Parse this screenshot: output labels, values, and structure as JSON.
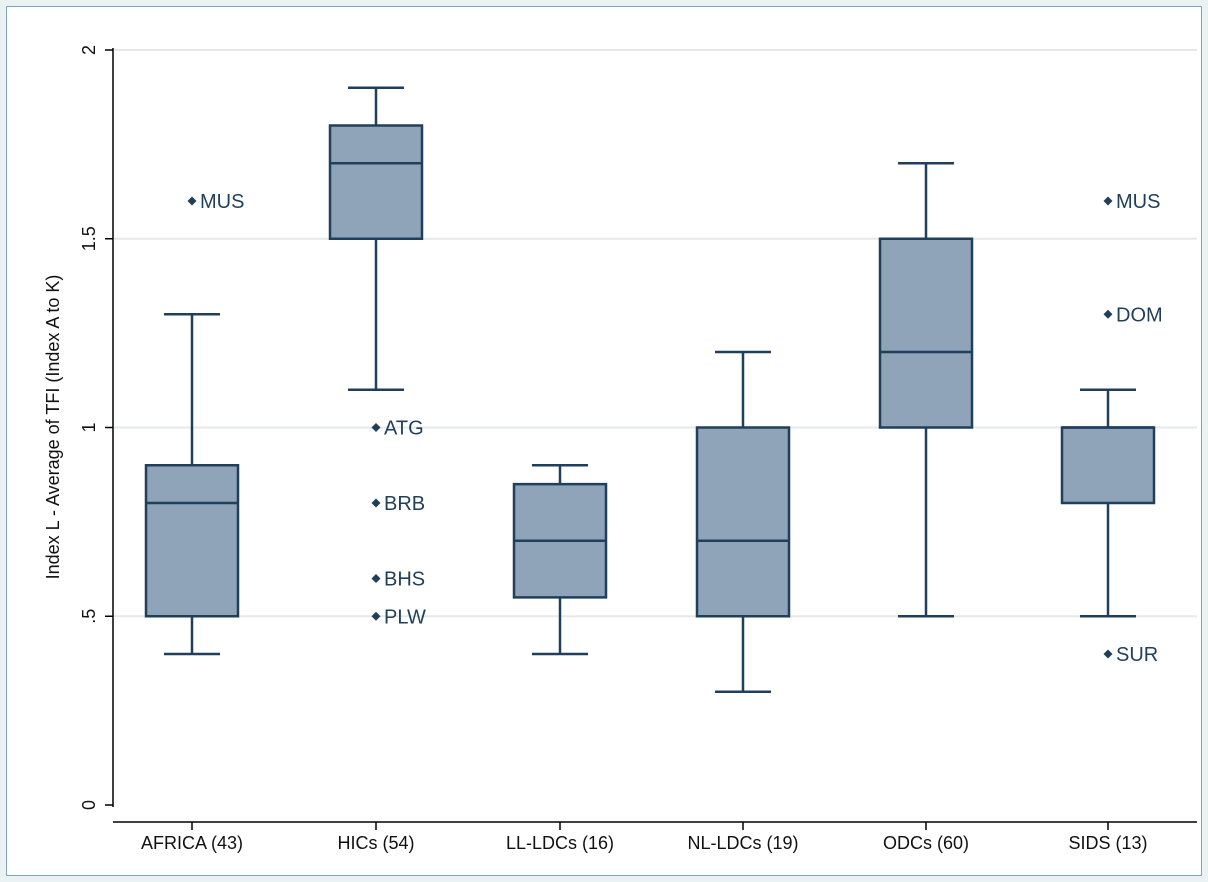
{
  "chart_data": {
    "type": "box",
    "ylabel": "Index L - Average of TFI (Index A to K)",
    "xlabel": "",
    "ylim": [
      0,
      2
    ],
    "yticks": [
      {
        "value": 0,
        "label": "0"
      },
      {
        "value": 0.5,
        "label": ".5"
      },
      {
        "value": 1,
        "label": "1"
      },
      {
        "value": 1.5,
        "label": "1.5"
      },
      {
        "value": 2,
        "label": "2"
      }
    ],
    "grid": true,
    "colors": {
      "box_fill": "#8fa4b8",
      "box_stroke": "#1f3f5b",
      "outlier": "#1f3f5b",
      "grid": "#e6e8ea",
      "axis": "#000000"
    },
    "categories": [
      "AFRICA (43)",
      "HICs (54)",
      "LL-LDCs (16)",
      "NL-LDCs (19)",
      "ODCs (60)",
      "SIDS (13)"
    ],
    "boxes": [
      {
        "category": "AFRICA (43)",
        "whisker_low": 0.4,
        "q1": 0.5,
        "median": 0.8,
        "q3": 0.9,
        "whisker_high": 1.3,
        "outliers": [
          {
            "label": "MUS",
            "value": 1.6
          }
        ]
      },
      {
        "category": "HICs (54)",
        "whisker_low": 1.1,
        "q1": 1.5,
        "median": 1.7,
        "q3": 1.8,
        "whisker_high": 1.9,
        "outliers": [
          {
            "label": "ATG",
            "value": 1.0
          },
          {
            "label": "BRB",
            "value": 0.8
          },
          {
            "label": "BHS",
            "value": 0.6
          },
          {
            "label": "PLW",
            "value": 0.5
          }
        ]
      },
      {
        "category": "LL-LDCs (16)",
        "whisker_low": 0.4,
        "q1": 0.55,
        "median": 0.7,
        "q3": 0.85,
        "whisker_high": 0.9,
        "outliers": []
      },
      {
        "category": "NL-LDCs (19)",
        "whisker_low": 0.3,
        "q1": 0.5,
        "median": 0.7,
        "q3": 1.0,
        "whisker_high": 1.2,
        "outliers": []
      },
      {
        "category": "ODCs (60)",
        "whisker_low": 0.5,
        "q1": 1.0,
        "median": 1.2,
        "q3": 1.5,
        "whisker_high": 1.7,
        "outliers": []
      },
      {
        "category": "SIDS (13)",
        "whisker_low": 0.5,
        "q1": 0.8,
        "median": 1.0,
        "q3": 1.0,
        "whisker_high": 1.1,
        "outliers": [
          {
            "label": "MUS",
            "value": 1.6
          },
          {
            "label": "DOM",
            "value": 1.3
          },
          {
            "label": "SUR",
            "value": 0.4
          }
        ]
      }
    ]
  }
}
